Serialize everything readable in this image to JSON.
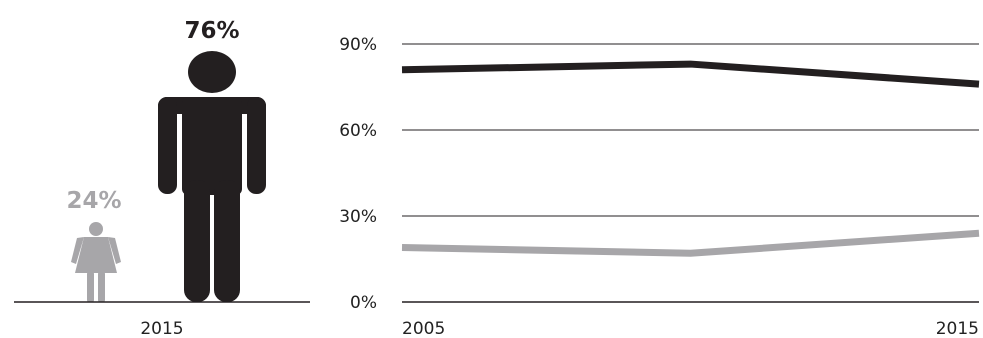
{
  "colors": {
    "male": "#231f20",
    "female": "#a7a6a9",
    "axis": "#231f20",
    "grid": "#231f20"
  },
  "pictogram": {
    "male_label": "76%",
    "female_label": "24%",
    "year_label": "2015",
    "male_icon": "male-figure-icon",
    "female_icon": "female-figure-icon"
  },
  "chart_data": {
    "type": "line",
    "x": [
      2005,
      2010,
      2015
    ],
    "x_tick_labels": [
      "2005",
      "2015"
    ],
    "y_tick_labels": [
      "0%",
      "30%",
      "60%",
      "90%"
    ],
    "ylim": [
      0,
      90
    ],
    "grid": true,
    "title": "",
    "xlabel": "",
    "ylabel": "",
    "series": [
      {
        "values": [
          81,
          83,
          76
        ],
        "color": "#231f20"
      },
      {
        "values": [
          19,
          17,
          24
        ],
        "color": "#a7a6a9"
      }
    ]
  }
}
